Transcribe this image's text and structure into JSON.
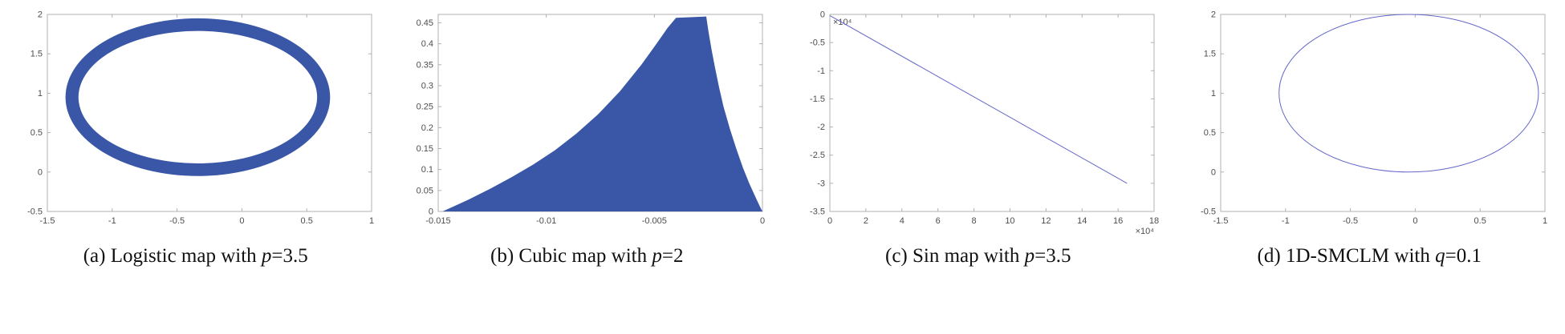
{
  "figure": {
    "background": "#ffffff"
  },
  "colors": {
    "axis": "#b0b0b0",
    "tick_text": "#4d4d4d",
    "caption_text": "#111111",
    "fill_blue": "#3a57a7",
    "line_blue": "#6467c9"
  },
  "chart_data": [
    {
      "id": "a",
      "type": "ellipse-ring",
      "xlim": [
        -1.5,
        1
      ],
      "ylim": [
        -0.5,
        2
      ],
      "xticks": [
        -1.5,
        -1,
        -0.5,
        0,
        0.5,
        1
      ],
      "xtick_labels": [
        "-1.5",
        "-1",
        "-0.5",
        "0",
        "0.5",
        "1"
      ],
      "yticks": [
        -0.5,
        0,
        0.5,
        1,
        1.5,
        2
      ],
      "ytick_labels": [
        "-0.5",
        "0",
        "0.5",
        "1",
        "1.5",
        "2"
      ],
      "color": "#3a57a7",
      "series": {
        "cx": -0.34,
        "cy": 0.95,
        "rx_outer": 1.02,
        "ry_outer": 1.0,
        "rx_inner": 0.92,
        "ry_inner": 0.84
      },
      "caption": {
        "prefix": "(a) Logistic map with ",
        "var": "p",
        "suffix": "=3.5"
      }
    },
    {
      "id": "b",
      "type": "filled-polygon",
      "xlim": [
        -0.015,
        0
      ],
      "ylim": [
        0,
        0.47
      ],
      "xticks": [
        -0.015,
        -0.01,
        -0.005,
        0
      ],
      "xtick_labels": [
        "-0.015",
        "-0.01",
        "-0.005",
        "0"
      ],
      "yticks": [
        0,
        0.05,
        0.1,
        0.15,
        0.2,
        0.25,
        0.3,
        0.35,
        0.4,
        0.45
      ],
      "ytick_labels": [
        "0",
        "0.05",
        "0.1",
        "0.15",
        "0.2",
        "0.25",
        "0.3",
        "0.35",
        "0.4",
        "0.45"
      ],
      "color": "#3a57a7",
      "series": {
        "points": [
          [
            -0.0148,
            0
          ],
          [
            -0.0136,
            0.028
          ],
          [
            -0.0126,
            0.054
          ],
          [
            -0.0116,
            0.082
          ],
          [
            -0.0106,
            0.112
          ],
          [
            -0.0096,
            0.146
          ],
          [
            -0.0086,
            0.186
          ],
          [
            -0.0076,
            0.232
          ],
          [
            -0.0066,
            0.286
          ],
          [
            -0.0056,
            0.35
          ],
          [
            -0.0049,
            0.4
          ],
          [
            -0.0044,
            0.437
          ],
          [
            -0.004,
            0.462
          ],
          [
            -0.0026,
            0.465
          ],
          [
            -0.0025,
            0.43
          ],
          [
            -0.00235,
            0.385
          ],
          [
            -0.0022,
            0.345
          ],
          [
            -0.002,
            0.295
          ],
          [
            -0.0018,
            0.25
          ],
          [
            -0.0015,
            0.196
          ],
          [
            -0.0012,
            0.148
          ],
          [
            -0.0009,
            0.104
          ],
          [
            -0.0006,
            0.066
          ],
          [
            -0.0003,
            0.032
          ],
          [
            -0.0001,
            0.01
          ],
          [
            0,
            0
          ]
        ]
      },
      "caption": {
        "prefix": "(b) Cubic map with ",
        "var": "p",
        "suffix": "=2"
      }
    },
    {
      "id": "c",
      "type": "line",
      "xlim": [
        0,
        18
      ],
      "ylim": [
        -3.5,
        0
      ],
      "xticks": [
        0,
        2,
        4,
        6,
        8,
        10,
        12,
        14,
        16,
        18
      ],
      "xtick_labels": [
        "0",
        "2",
        "4",
        "6",
        "8",
        "10",
        "12",
        "14",
        "16",
        "18"
      ],
      "yticks": [
        0,
        -0.5,
        -1,
        -1.5,
        -2,
        -2.5,
        -3,
        -3.5
      ],
      "ytick_labels": [
        "0",
        "-0.5",
        "-1",
        "-1.5",
        "-2",
        "-2.5",
        "-3",
        "-3.5"
      ],
      "x_exp": "×10⁴",
      "y_exp": "×10⁴",
      "color": "#6467c9",
      "series": {
        "points": [
          [
            0,
            -0.02
          ],
          [
            16.5,
            -3.0
          ]
        ]
      },
      "caption": {
        "prefix": "(c) Sin map with ",
        "var": "p",
        "suffix": "=3.5"
      }
    },
    {
      "id": "d",
      "type": "ellipse-outline",
      "xlim": [
        -1.5,
        1
      ],
      "ylim": [
        -0.5,
        2
      ],
      "xticks": [
        -1.5,
        -1,
        -0.5,
        0,
        0.5,
        1
      ],
      "xtick_labels": [
        "-1.5",
        "-1",
        "-0.5",
        "0",
        "0.5",
        "1"
      ],
      "yticks": [
        -0.5,
        0,
        0.5,
        1,
        1.5,
        2
      ],
      "ytick_labels": [
        "-0.5",
        "0",
        "0.5",
        "1",
        "1.5",
        "2"
      ],
      "color": "#6467c9",
      "series": {
        "cx": -0.05,
        "cy": 1.0,
        "rx": 1.0,
        "ry": 1.0
      },
      "caption": {
        "prefix": "(d) 1D-SMCLM with ",
        "var": "q",
        "suffix": "=0.1"
      }
    }
  ]
}
